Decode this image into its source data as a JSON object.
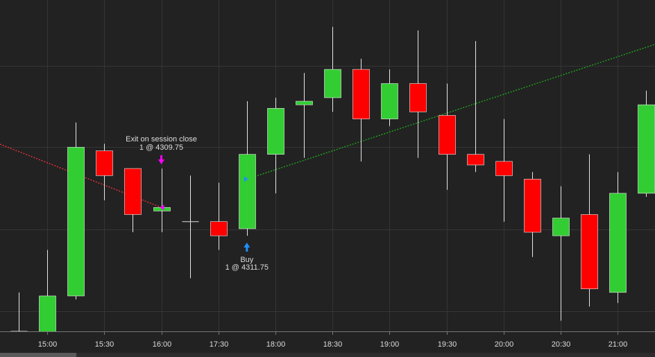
{
  "chart_data": {
    "type": "candlestick",
    "categories": [
      null,
      "15:00",
      null,
      "15:30",
      null,
      "16:00",
      null,
      "17:30",
      null,
      "18:00",
      null,
      "18:30",
      null,
      "19:00",
      null,
      "19:30",
      null,
      "20:00",
      null,
      "20:30",
      null,
      "21:00",
      null
    ],
    "open": [
      4301.0,
      4300.75,
      4303.5,
      4313.75,
      4312.5,
      4309.5,
      4308.75,
      4308.75,
      4308.25,
      4313.5,
      4317.0,
      4317.5,
      4319.5,
      4316.0,
      4318.5,
      4316.25,
      4313.5,
      4313.0,
      4311.75,
      4307.75,
      4309.25,
      4303.75,
      4310.75
    ],
    "high": [
      4303.75,
      4306.75,
      4315.75,
      4314.25,
      4312.5,
      4312.5,
      4312.0,
      4311.5,
      4317.25,
      4317.5,
      4319.25,
      4322.5,
      4320.25,
      4319.5,
      4322.25,
      4318.5,
      4321.5,
      4316.0,
      4312.25,
      4311.25,
      4313.5,
      4312.25,
      4318.0
    ],
    "low": [
      4300.75,
      4300.5,
      4303.25,
      4310.25,
      4308.0,
      4308.0,
      4304.75,
      4306.75,
      4307.75,
      4310.75,
      4313.25,
      4316.5,
      4313.0,
      4315.5,
      4313.25,
      4311.0,
      4312.25,
      4308.75,
      4306.25,
      4301.75,
      4302.75,
      4303.0,
      4310.5
    ],
    "close": [
      4301.0,
      4303.5,
      4314.0,
      4312.0,
      4309.25,
      4309.75,
      4308.75,
      4307.75,
      4313.5,
      4316.75,
      4317.25,
      4319.5,
      4316.0,
      4318.5,
      4316.5,
      4313.5,
      4312.75,
      4312.0,
      4308.0,
      4309.0,
      4304.0,
      4310.75,
      4317.0
    ],
    "up_color": "#32cd32",
    "down_color": "#ff0000",
    "doji_color": "#dddddd",
    "ylim": [
      4301.0,
      4324.4
    ],
    "ygrid": [
      4319.75,
      4314.0,
      4308.2,
      4302.4
    ],
    "grid": true,
    "trades": [
      {
        "label": "Exit on session close",
        "detail": "1 @ 4309.75",
        "price": 4309.75,
        "index": 5,
        "side": "exit",
        "color": "#ff00ff",
        "line_color": "#e0303a"
      },
      {
        "label": "Buy",
        "detail": "1 @ 4311.75",
        "price": 4311.75,
        "index": 8,
        "side": "entry",
        "color": "#1e90ff",
        "line_color": "#1f9e1f"
      }
    ]
  }
}
